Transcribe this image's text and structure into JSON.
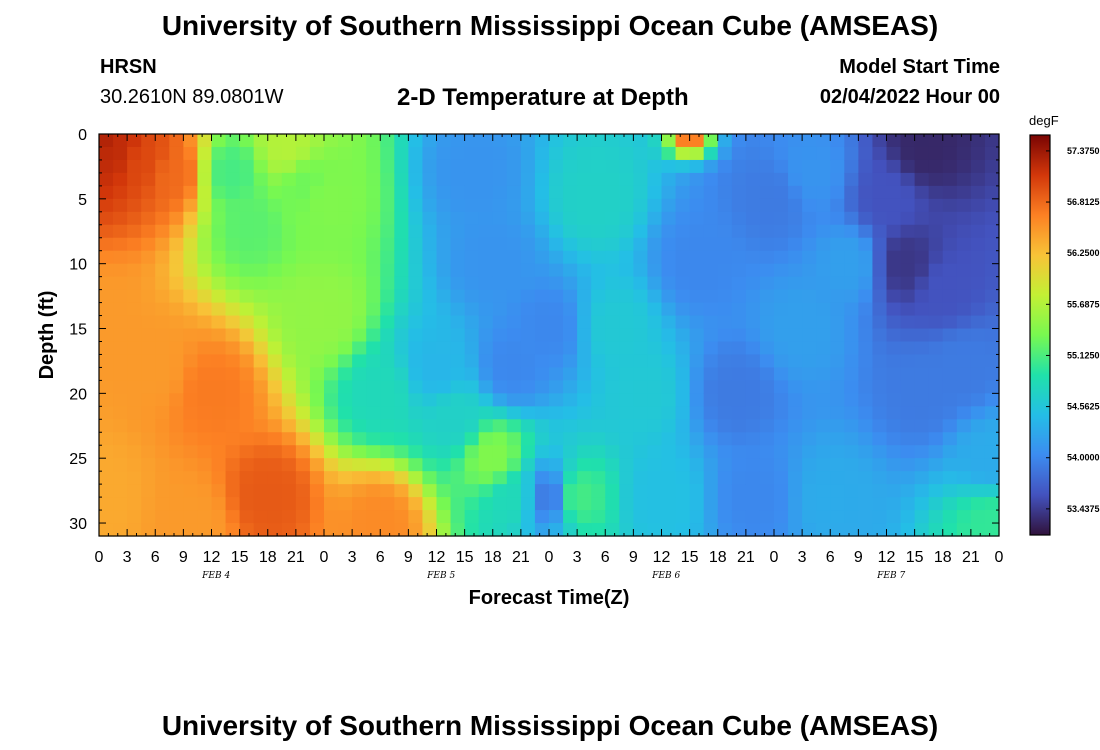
{
  "header": {
    "title": "University of Southern Mississippi Ocean Cube (AMSEAS)",
    "station": "HRSN",
    "coords": "30.2610N  89.0801W",
    "chart_title": "2-D Temperature at Depth",
    "start_label": "Model Start Time",
    "start_value": "02/04/2022 Hour 00"
  },
  "footer": {
    "title": "University of Southern Mississippi Ocean Cube (AMSEAS)"
  },
  "chart_data": {
    "type": "heatmap",
    "title": "2-D Temperature at Depth",
    "xlabel": "Forecast Time(Z)",
    "ylabel": "Depth (ft)",
    "x_tick_labels": [
      "0",
      "3",
      "6",
      "9",
      "12",
      "15",
      "18",
      "21",
      "0",
      "3",
      "6",
      "9",
      "12",
      "15",
      "18",
      "21",
      "0",
      "3",
      "6",
      "9",
      "12",
      "15",
      "18",
      "21",
      "0",
      "3",
      "6",
      "9",
      "12",
      "15",
      "18",
      "21",
      "0"
    ],
    "date_labels": [
      "FEB 4",
      "FEB 5",
      "FEB 6",
      "FEB 7"
    ],
    "y_ticks": [
      0,
      5,
      10,
      15,
      20,
      25,
      30
    ],
    "xlim_hours": [
      0,
      96
    ],
    "ylim": [
      0,
      31
    ],
    "y_inverted": true,
    "colorbar": {
      "unit": "degF",
      "tick_labels": [
        "57.3750",
        "56.8125",
        "56.2500",
        "55.6875",
        "55.1250",
        "54.5625",
        "54.0000",
        "53.4375"
      ],
      "range": [
        53.15,
        57.55
      ]
    },
    "cell_hours": 1.5,
    "cell_ft": 1,
    "field_points": [
      [
        0,
        0,
        57.3
      ],
      [
        2,
        1,
        57.2
      ],
      [
        5,
        2,
        57.0
      ],
      [
        8,
        3,
        56.8
      ],
      [
        0,
        15,
        56.5
      ],
      [
        6,
        18,
        56.5
      ],
      [
        12,
        20,
        56.7
      ],
      [
        18,
        28,
        56.9
      ],
      [
        0,
        28,
        56.4
      ],
      [
        30,
        30,
        56.6
      ],
      [
        10,
        30,
        56.5
      ],
      [
        14,
        3,
        55.1
      ],
      [
        16,
        7,
        55.2
      ],
      [
        20,
        1,
        55.7
      ],
      [
        22,
        4,
        55.3
      ],
      [
        24,
        5,
        55.4
      ],
      [
        24,
        14,
        55.5
      ],
      [
        30,
        20,
        54.8
      ],
      [
        36,
        18,
        54.4
      ],
      [
        38,
        22,
        54.7
      ],
      [
        42,
        25,
        55.4
      ],
      [
        44,
        28,
        54.8
      ],
      [
        40,
        3,
        54.1
      ],
      [
        42,
        10,
        54.1
      ],
      [
        44,
        18,
        54.0
      ],
      [
        48,
        15,
        54.0
      ],
      [
        48,
        28,
        53.9
      ],
      [
        51,
        28,
        55.1
      ],
      [
        53,
        5,
        54.7
      ],
      [
        55,
        15,
        54.6
      ],
      [
        58,
        20,
        54.6
      ],
      [
        60,
        28,
        54.5
      ],
      [
        64,
        10,
        54.0
      ],
      [
        68,
        20,
        53.9
      ],
      [
        70,
        28,
        54.0
      ],
      [
        72,
        5,
        53.9
      ],
      [
        75,
        15,
        54.2
      ],
      [
        78,
        28,
        54.3
      ],
      [
        76,
        3,
        54.1
      ],
      [
        80,
        10,
        54.2
      ],
      [
        84,
        5,
        53.6
      ],
      [
        86,
        10,
        53.4
      ],
      [
        88,
        1,
        53.3
      ],
      [
        90,
        12,
        53.6
      ],
      [
        88,
        20,
        53.9
      ],
      [
        92,
        18,
        53.9
      ],
      [
        95,
        25,
        54.3
      ],
      [
        95,
        30,
        55.0
      ]
    ],
    "hot_spot": {
      "x_hours": 63,
      "depth_ft": 0.5,
      "value": 56.9
    }
  }
}
